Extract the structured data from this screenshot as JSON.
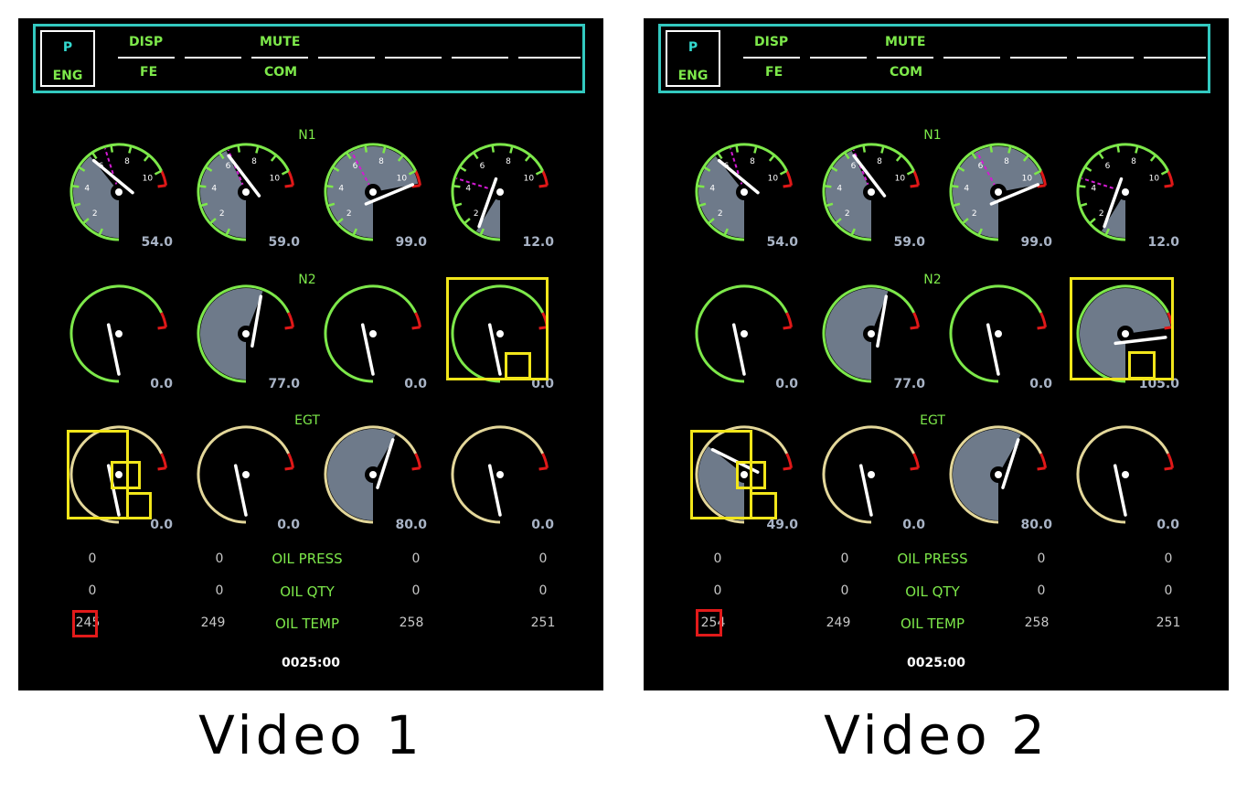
{
  "colors": {
    "cyan": "#33c9c0",
    "green": "#7de84a",
    "fill": "#6e7a8a",
    "egt_arc": "#e3d79a",
    "redline": "#e01818",
    "magenta": "#d21ad2",
    "highlight": "#f2e61a"
  },
  "menu": {
    "p_label": "P",
    "eng_label": "ENG",
    "disp_label": "DISP",
    "fe_label": "FE",
    "mute_label": "MUTE",
    "com_label": "COM"
  },
  "labels": {
    "n1": "N1",
    "n2": "N2",
    "egt": "EGT",
    "oil_press": "OIL PRESS",
    "oil_qty": "OIL QTY",
    "oil_temp": "OIL TEMP"
  },
  "n1_ticks": [
    "2",
    "4",
    "6",
    "8",
    "10"
  ],
  "panels": [
    {
      "caption": "Video 1",
      "timer": "0025:00",
      "n1": [
        {
          "value": "54.0",
          "fraction": 0.54,
          "ref_fraction": 0.62
        },
        {
          "value": "59.0",
          "fraction": 0.59,
          "ref_fraction": 0.6
        },
        {
          "value": "99.0",
          "fraction": 0.99,
          "ref_fraction": 0.58
        },
        {
          "value": "12.0",
          "fraction": 0.12,
          "ref_fraction": 0.41
        }
      ],
      "n2": [
        {
          "value": "0.0",
          "fraction": 0.0
        },
        {
          "value": "77.0",
          "fraction": 0.77
        },
        {
          "value": "0.0",
          "fraction": 0.0
        },
        {
          "value": "0.0",
          "fraction": 0.0
        }
      ],
      "egt": [
        {
          "value": "0.0",
          "fraction": 0.0
        },
        {
          "value": "0.0",
          "fraction": 0.0
        },
        {
          "value": "80.0",
          "fraction": 0.8
        },
        {
          "value": "0.0",
          "fraction": 0.0
        }
      ],
      "oil_press": [
        "0",
        "0",
        "0",
        "0"
      ],
      "oil_qty": [
        "0",
        "0",
        "0",
        "0"
      ],
      "oil_temp": [
        "245",
        "249",
        "258",
        "251"
      ]
    },
    {
      "caption": "Video 2",
      "timer": "0025:00",
      "n1": [
        {
          "value": "54.0",
          "fraction": 0.54,
          "ref_fraction": 0.62
        },
        {
          "value": "59.0",
          "fraction": 0.59,
          "ref_fraction": 0.6
        },
        {
          "value": "99.0",
          "fraction": 0.99,
          "ref_fraction": 0.58
        },
        {
          "value": "12.0",
          "fraction": 0.12,
          "ref_fraction": 0.41
        }
      ],
      "n2": [
        {
          "value": "0.0",
          "fraction": 0.0
        },
        {
          "value": "77.0",
          "fraction": 0.77
        },
        {
          "value": "0.0",
          "fraction": 0.0
        },
        {
          "value": "105.0",
          "fraction": 1.05
        }
      ],
      "egt": [
        {
          "value": "49.0",
          "fraction": 0.49
        },
        {
          "value": "0.0",
          "fraction": 0.0
        },
        {
          "value": "80.0",
          "fraction": 0.8
        },
        {
          "value": "0.0",
          "fraction": 0.0
        }
      ],
      "oil_press": [
        "0",
        "0",
        "0",
        "0"
      ],
      "oil_qty": [
        "0",
        "0",
        "0",
        "0"
      ],
      "oil_temp": [
        "254",
        "249",
        "258",
        "251"
      ]
    }
  ]
}
